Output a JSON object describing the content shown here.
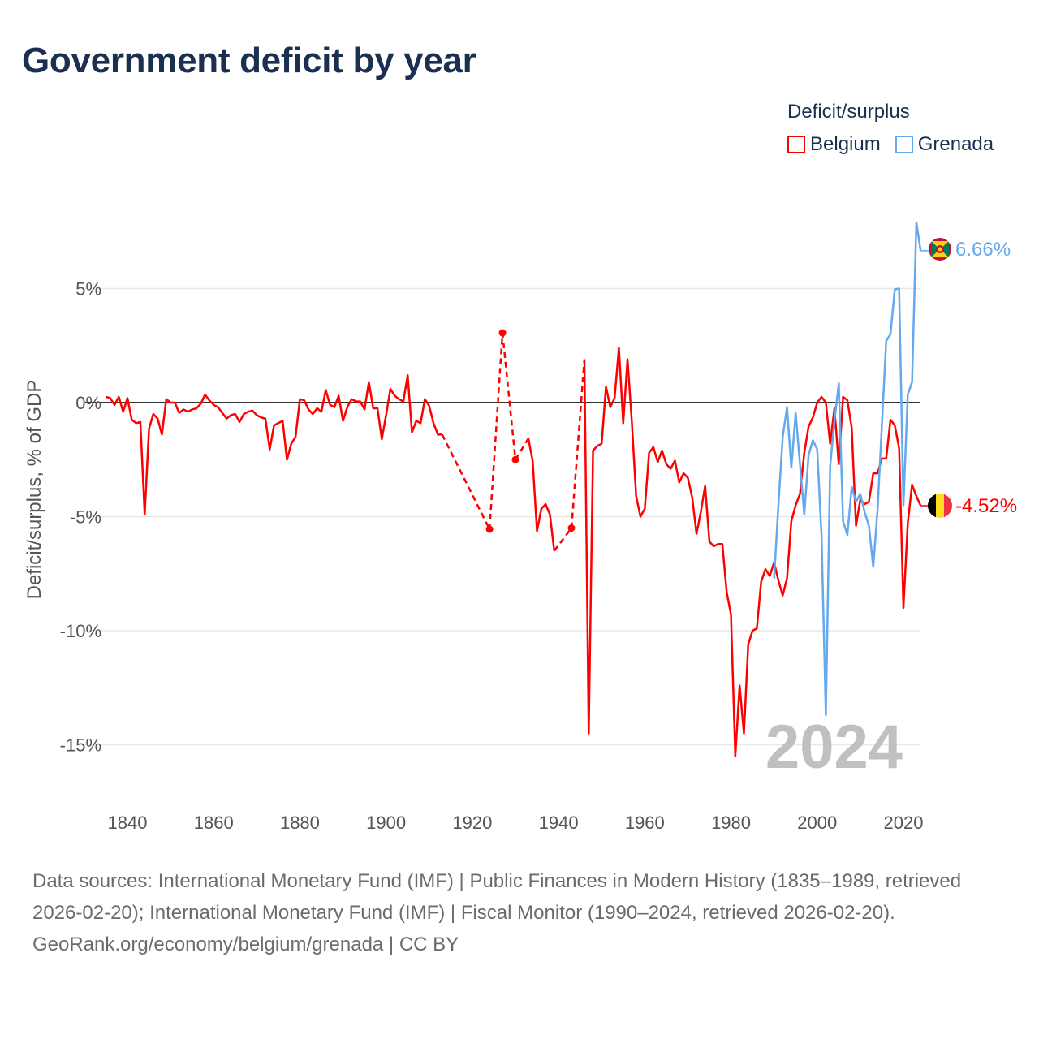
{
  "title": "Government deficit by year",
  "legend": {
    "title": "Deficit/surplus",
    "items": [
      {
        "label": "Belgium",
        "color": "#ff0000"
      },
      {
        "label": "Grenada",
        "color": "#64a8ee"
      }
    ]
  },
  "watermark_year": "2024",
  "end_labels": {
    "belgium": "-4.52%",
    "grenada": "6.66%"
  },
  "footer": {
    "sources": "Data sources: International Monetary Fund (IMF) | Public Finances in Modern History (1835–1989, retrieved 2026-02-20); International Monetary Fund (IMF) | Fiscal Monitor (1990–2024, retrieved 2026-02-20).",
    "credit": "GeoRank.org/economy/belgium/grenada | CC BY"
  },
  "chart_data": {
    "type": "line",
    "title": "Government deficit by year",
    "xlabel": "",
    "ylabel": "Deficit/surplus, % of GDP",
    "xlim": [
      1835,
      2024
    ],
    "ylim": [
      -17,
      8
    ],
    "x_ticks": [
      1840,
      1860,
      1880,
      1900,
      1920,
      1940,
      1960,
      1980,
      2000,
      2020
    ],
    "x_tick_labels": [
      "1840",
      "1860",
      "1880",
      "1900",
      "1920",
      "1940",
      "1960",
      "1980",
      "2000",
      "2020"
    ],
    "y_ticks": [
      5,
      0,
      -5,
      -10,
      -15
    ],
    "y_tick_labels": [
      "5%",
      "0%",
      "-5%",
      "-10%",
      "-15%"
    ],
    "grid": true,
    "legend_position": "top-right",
    "series": [
      {
        "name": "Belgium",
        "color": "#ff0000",
        "points": [
          [
            1835,
            0.25
          ],
          [
            1836,
            0.2
          ],
          [
            1837,
            -0.1
          ],
          [
            1838,
            0.25
          ],
          [
            1839,
            -0.4
          ],
          [
            1840,
            0.2
          ],
          [
            1841,
            -0.75
          ],
          [
            1842,
            -0.9
          ],
          [
            1843,
            -0.85
          ],
          [
            1844,
            -4.9
          ],
          [
            1845,
            -1.15
          ],
          [
            1846,
            -0.5
          ],
          [
            1847,
            -0.7
          ],
          [
            1848,
            -1.4
          ],
          [
            1849,
            0.15
          ],
          [
            1850,
            0
          ],
          [
            1851,
            0
          ],
          [
            1852,
            -0.45
          ],
          [
            1853,
            -0.3
          ],
          [
            1854,
            -0.4
          ],
          [
            1855,
            -0.3
          ],
          [
            1856,
            -0.25
          ],
          [
            1857,
            -0.05
          ],
          [
            1858,
            0.35
          ],
          [
            1859,
            0.1
          ],
          [
            1860,
            -0.1
          ],
          [
            1861,
            -0.2
          ],
          [
            1862,
            -0.45
          ],
          [
            1863,
            -0.7
          ],
          [
            1864,
            -0.55
          ],
          [
            1865,
            -0.5
          ],
          [
            1866,
            -0.85
          ],
          [
            1867,
            -0.5
          ],
          [
            1868,
            -0.4
          ],
          [
            1869,
            -0.35
          ],
          [
            1870,
            -0.55
          ],
          [
            1871,
            -0.65
          ],
          [
            1872,
            -0.7
          ],
          [
            1873,
            -2.05
          ],
          [
            1874,
            -1.0
          ],
          [
            1875,
            -0.9
          ],
          [
            1876,
            -0.8
          ],
          [
            1877,
            -2.5
          ],
          [
            1878,
            -1.8
          ],
          [
            1879,
            -1.5
          ],
          [
            1880,
            0.15
          ],
          [
            1881,
            0.1
          ],
          [
            1882,
            -0.3
          ],
          [
            1883,
            -0.5
          ],
          [
            1884,
            -0.25
          ],
          [
            1885,
            -0.4
          ],
          [
            1886,
            0.55
          ],
          [
            1887,
            -0.1
          ],
          [
            1888,
            -0.2
          ],
          [
            1889,
            0.3
          ],
          [
            1890,
            -0.8
          ],
          [
            1891,
            -0.2
          ],
          [
            1892,
            0.15
          ],
          [
            1893,
            0.05
          ],
          [
            1894,
            0.05
          ],
          [
            1895,
            -0.3
          ],
          [
            1896,
            0.9
          ],
          [
            1897,
            -0.25
          ],
          [
            1898,
            -0.25
          ],
          [
            1899,
            -1.6
          ],
          [
            1900,
            -0.55
          ],
          [
            1901,
            0.6
          ],
          [
            1902,
            0.3
          ],
          [
            1903,
            0.15
          ],
          [
            1904,
            0.05
          ],
          [
            1905,
            1.2
          ],
          [
            1906,
            -1.3
          ],
          [
            1907,
            -0.8
          ],
          [
            1908,
            -0.9
          ],
          [
            1909,
            0.15
          ],
          [
            1910,
            -0.15
          ],
          [
            1911,
            -0.9
          ],
          [
            1912,
            -1.4
          ],
          [
            1913,
            -1.4
          ],
          [
            1924,
            -5.55
          ],
          [
            1927,
            3.06
          ],
          [
            1930,
            -2.5
          ],
          [
            1933,
            -1.57
          ],
          [
            1934,
            -2.56
          ],
          [
            1935,
            -5.63
          ],
          [
            1936,
            -4.66
          ],
          [
            1937,
            -4.45
          ],
          [
            1938,
            -4.9
          ],
          [
            1939,
            -6.5
          ],
          [
            1943,
            -5.5
          ],
          [
            1946,
            1.9
          ],
          [
            1947,
            -14.5
          ],
          [
            1948,
            -2.1
          ],
          [
            1949,
            -1.9
          ],
          [
            1950,
            -1.8
          ],
          [
            1951,
            0.7
          ],
          [
            1952,
            -0.2
          ],
          [
            1953,
            0.2
          ],
          [
            1954,
            2.4
          ],
          [
            1955,
            -0.9
          ],
          [
            1956,
            1.9
          ],
          [
            1957,
            -0.85
          ],
          [
            1958,
            -4.1
          ],
          [
            1959,
            -5.0
          ],
          [
            1960,
            -4.65
          ],
          [
            1961,
            -2.2
          ],
          [
            1962,
            -1.95
          ],
          [
            1963,
            -2.6
          ],
          [
            1964,
            -2.1
          ],
          [
            1965,
            -2.7
          ],
          [
            1966,
            -2.9
          ],
          [
            1967,
            -2.55
          ],
          [
            1968,
            -3.5
          ],
          [
            1969,
            -3.1
          ],
          [
            1970,
            -3.3
          ],
          [
            1971,
            -4.15
          ],
          [
            1972,
            -5.75
          ],
          [
            1973,
            -4.8
          ],
          [
            1974,
            -3.65
          ],
          [
            1975,
            -6.1
          ],
          [
            1976,
            -6.3
          ],
          [
            1977,
            -6.2
          ],
          [
            1978,
            -6.2
          ],
          [
            1979,
            -8.3
          ],
          [
            1980,
            -9.3
          ],
          [
            1981,
            -15.5
          ],
          [
            1982,
            -12.4
          ],
          [
            1983,
            -14.5
          ],
          [
            1984,
            -10.6
          ],
          [
            1985,
            -10.0
          ],
          [
            1986,
            -9.9
          ],
          [
            1987,
            -7.85
          ],
          [
            1988,
            -7.3
          ],
          [
            1989,
            -7.6
          ],
          [
            1990,
            -7.0
          ],
          [
            1991,
            -7.8
          ],
          [
            1992,
            -8.45
          ],
          [
            1993,
            -7.7
          ],
          [
            1994,
            -5.2
          ],
          [
            1995,
            -4.5
          ],
          [
            1996,
            -4.0
          ],
          [
            1997,
            -2.2
          ],
          [
            1998,
            -1.05
          ],
          [
            1999,
            -0.65
          ],
          [
            2000,
            0.0
          ],
          [
            2001,
            0.25
          ],
          [
            2002,
            0.0
          ],
          [
            2003,
            -1.8
          ],
          [
            2004,
            -0.25
          ],
          [
            2005,
            -2.7
          ],
          [
            2006,
            0.25
          ],
          [
            2007,
            0.1
          ],
          [
            2008,
            -1.1
          ],
          [
            2009,
            -5.4
          ],
          [
            2010,
            -4.25
          ],
          [
            2011,
            -4.45
          ],
          [
            2012,
            -4.35
          ],
          [
            2013,
            -3.1
          ],
          [
            2014,
            -3.1
          ],
          [
            2015,
            -2.45
          ],
          [
            2016,
            -2.45
          ],
          [
            2017,
            -0.75
          ],
          [
            2018,
            -1.0
          ],
          [
            2019,
            -2.0
          ],
          [
            2020,
            -9.0
          ],
          [
            2021,
            -5.3
          ],
          [
            2022,
            -3.6
          ],
          [
            2023,
            -4.1
          ],
          [
            2024,
            -4.52
          ]
        ]
      },
      {
        "name": "Grenada",
        "color": "#64a8ee",
        "start_year": 1990,
        "values": [
          -7.7,
          -4.5,
          -1.5,
          -0.2,
          -2.85,
          -0.45,
          -2.7,
          -4.9,
          -2.3,
          -1.65,
          -2.05,
          -5.8,
          -13.7,
          -2.8,
          -0.8,
          0.85,
          -5.2,
          -5.8,
          -3.7,
          -4.35,
          -4.0,
          -4.8,
          -5.4,
          -7.2,
          -4.7,
          -1.0,
          2.7,
          3.0,
          4.97,
          5.0,
          -4.5,
          0.35,
          0.9,
          7.9,
          6.66
        ]
      }
    ]
  }
}
